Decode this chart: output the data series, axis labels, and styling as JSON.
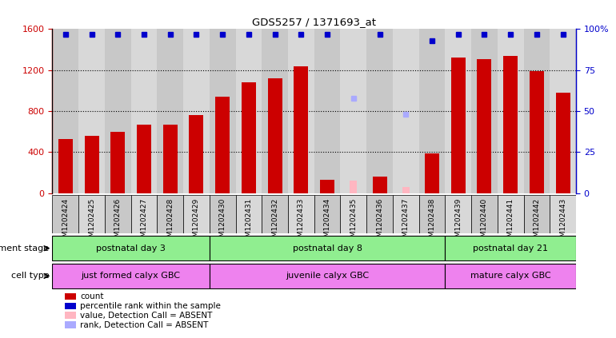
{
  "title": "GDS5257 / 1371693_at",
  "samples": [
    "GSM1202424",
    "GSM1202425",
    "GSM1202426",
    "GSM1202427",
    "GSM1202428",
    "GSM1202429",
    "GSM1202430",
    "GSM1202431",
    "GSM1202432",
    "GSM1202433",
    "GSM1202434",
    "GSM1202435",
    "GSM1202436",
    "GSM1202437",
    "GSM1202438",
    "GSM1202439",
    "GSM1202440",
    "GSM1202441",
    "GSM1202442",
    "GSM1202443"
  ],
  "counts": [
    530,
    560,
    600,
    670,
    665,
    760,
    940,
    1080,
    1120,
    1240,
    130,
    null,
    160,
    null,
    390,
    1320,
    1310,
    1340,
    1190,
    980
  ],
  "absent_counts": [
    null,
    null,
    null,
    null,
    null,
    null,
    null,
    null,
    null,
    null,
    null,
    120,
    null,
    60,
    null,
    null,
    null,
    null,
    null,
    null
  ],
  "percentile_ranks": [
    97,
    97,
    97,
    97,
    97,
    97,
    97,
    97,
    97,
    97,
    97,
    null,
    97,
    null,
    93,
    97,
    97,
    97,
    97,
    97
  ],
  "absent_ranks": [
    null,
    null,
    null,
    null,
    null,
    null,
    null,
    null,
    null,
    null,
    null,
    58,
    null,
    48,
    null,
    null,
    null,
    null,
    null,
    null
  ],
  "ylim_left": [
    0,
    1600
  ],
  "ylim_right": [
    0,
    100
  ],
  "yticks_left": [
    0,
    400,
    800,
    1200,
    1600
  ],
  "yticks_right": [
    0,
    25,
    50,
    75,
    100
  ],
  "bar_color": "#CC0000",
  "absent_bar_color": "#FFB6C1",
  "dot_color": "#0000CC",
  "absent_dot_color": "#AAAAFF",
  "right_axis_color": "#0000CC",
  "left_axis_color": "#CC0000",
  "col_bg_even": "#C8C8C8",
  "col_bg_odd": "#D8D8D8",
  "groups": [
    {
      "label": "postnatal day 3",
      "start": 0,
      "end": 5,
      "color": "#90EE90"
    },
    {
      "label": "postnatal day 8",
      "start": 6,
      "end": 14,
      "color": "#90EE90"
    },
    {
      "label": "postnatal day 21",
      "start": 15,
      "end": 19,
      "color": "#90EE90"
    }
  ],
  "cell_types": [
    {
      "label": "just formed calyx GBC",
      "start": 0,
      "end": 5,
      "color": "#EE82EE"
    },
    {
      "label": "juvenile calyx GBC",
      "start": 6,
      "end": 14,
      "color": "#EE82EE"
    },
    {
      "label": "mature calyx GBC",
      "start": 15,
      "end": 19,
      "color": "#EE82EE"
    }
  ],
  "legend_items": [
    {
      "label": "count",
      "color": "#CC0000"
    },
    {
      "label": "percentile rank within the sample",
      "color": "#0000CC"
    },
    {
      "label": "value, Detection Call = ABSENT",
      "color": "#FFB6C1"
    },
    {
      "label": "rank, Detection Call = ABSENT",
      "color": "#AAAAFF"
    }
  ],
  "dev_stage_label": "development stage",
  "cell_type_label": "cell type",
  "bar_width": 0.55
}
